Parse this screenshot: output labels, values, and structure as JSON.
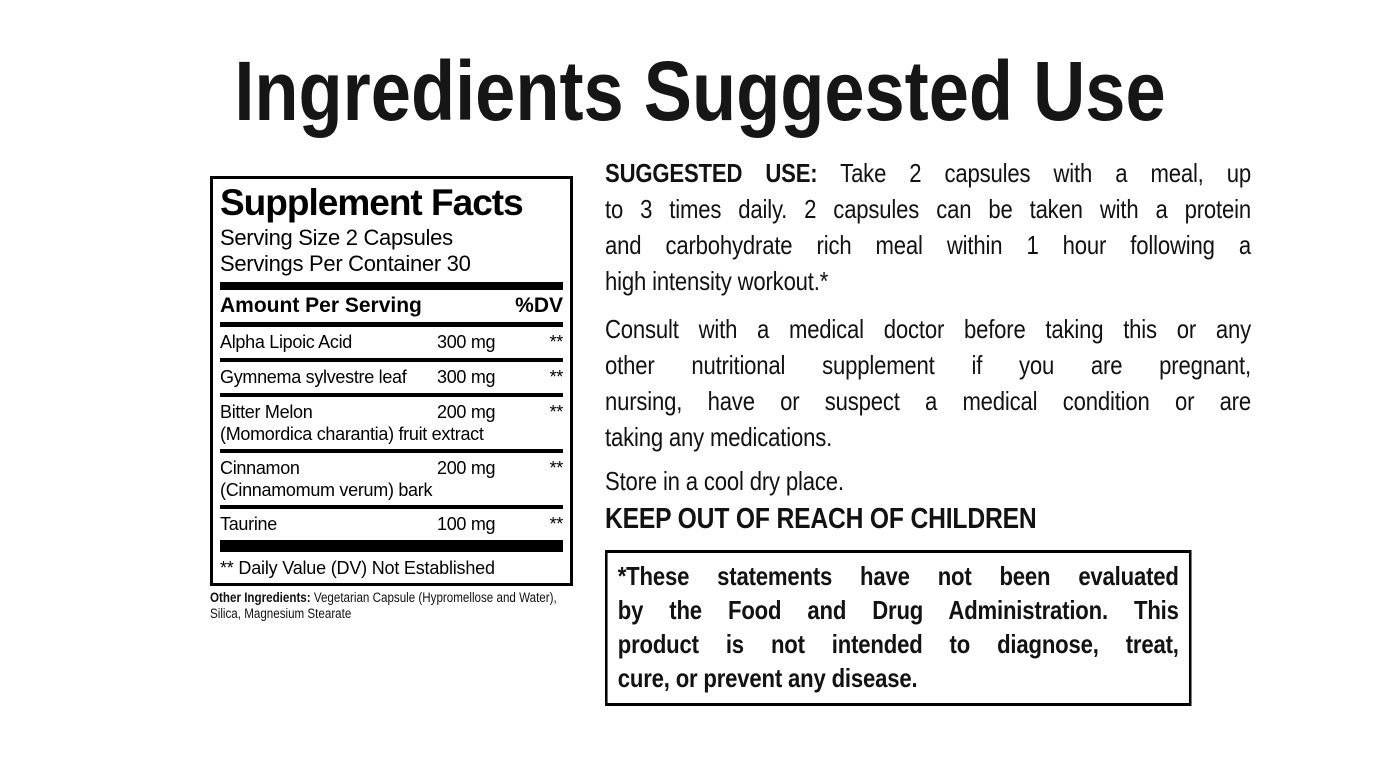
{
  "colors": {
    "ink": "#000000",
    "paper": "#ffffff"
  },
  "page": {
    "title": "Ingredients Suggested Use"
  },
  "supplement_facts": {
    "title": "Supplement Facts",
    "serving_size": "Serving Size 2 Capsules",
    "servings_per_container": "Servings Per Container 30",
    "header": {
      "amount": "Amount Per Serving",
      "dv": "%DV"
    },
    "rows": [
      {
        "name": "Alpha Lipoic Acid",
        "amount": "300 mg",
        "dv": "**"
      },
      {
        "name": "Gymnema sylvestre leaf",
        "amount": "300 mg",
        "dv": "**"
      },
      {
        "name": "Bitter Melon",
        "amount": "200 mg",
        "dv": "**",
        "detail": "(Momordica charantia) fruit extract"
      },
      {
        "name": "Cinnamon",
        "amount": "200 mg",
        "dv": "**",
        "detail": "(Cinnamomum verum) bark"
      },
      {
        "name": "Taurine",
        "amount": "100 mg",
        "dv": "**"
      }
    ],
    "footnote": "** Daily Value (DV) Not Established",
    "other_ingredients": {
      "label": "Other Ingredients:",
      "line1_rest": " Vegetarian Capsule (Hypromellose and Water),",
      "line2": "Silica, Magnesium Stearate"
    }
  },
  "suggested_use": {
    "label": "SUGGESTED USE:",
    "line1_rest": " Take 2 capsules with a meal, up",
    "line2": "to 3 times daily. 2 capsules can be taken with a protein",
    "line3": "and carbohydrate rich meal within 1 hour following a",
    "line4": "high intensity workout.*"
  },
  "consult": {
    "line1": "Consult with a medical doctor before taking this or any",
    "line2": "other nutritional supplement if you are pregnant,",
    "line3": "nursing, have or suspect a medical condition or are",
    "line4": "taking any medications."
  },
  "storage_note": "Store in a cool dry place.",
  "warning": "KEEP OUT OF REACH OF CHILDREN",
  "disclaimer": {
    "line1": "*These statements have not been evaluated",
    "line2": "by the Food and Drug Administration. This",
    "line3": "product is not intended to diagnose, treat,",
    "line4": "cure, or prevent any disease."
  }
}
